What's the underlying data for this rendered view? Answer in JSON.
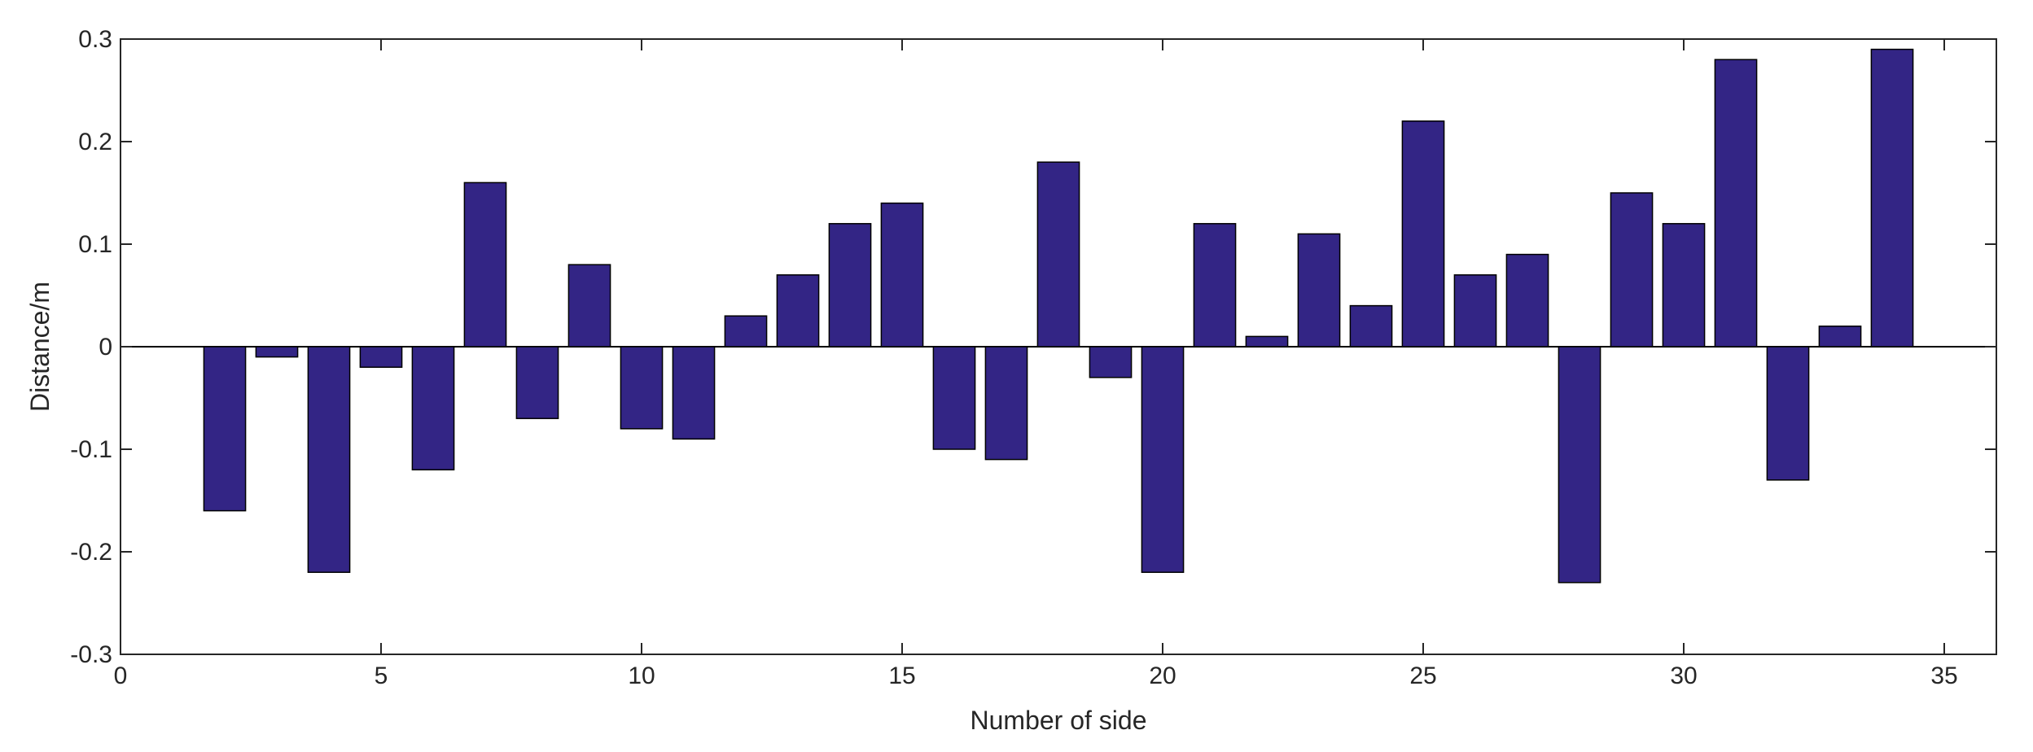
{
  "chart_data": {
    "type": "bar",
    "title": "",
    "xlabel": "Number of side",
    "ylabel": "Distance/m",
    "xlim": [
      0,
      36
    ],
    "ylim": [
      -0.3,
      0.3
    ],
    "xticks": [
      0,
      5,
      10,
      15,
      20,
      25,
      30,
      35
    ],
    "yticks": [
      0.3,
      0.2,
      0.1,
      0,
      -0.1,
      -0.2,
      -0.3
    ],
    "xtick_labels": [
      "0",
      "5",
      "10",
      "15",
      "20",
      "25",
      "30",
      "35"
    ],
    "ytick_labels": [
      "0.3",
      "0.2",
      "0.1",
      "0",
      "-0.1",
      "-0.2",
      "-0.3"
    ],
    "grid": false,
    "bar_color": "#332585",
    "x": [
      2,
      3,
      4,
      5,
      6,
      7,
      8,
      9,
      10,
      11,
      12,
      13,
      14,
      15,
      16,
      17,
      18,
      19,
      20,
      21,
      22,
      23,
      24,
      25,
      26,
      27,
      28,
      29,
      30,
      31,
      32,
      33,
      34
    ],
    "values": [
      -0.16,
      -0.01,
      -0.22,
      -0.02,
      -0.12,
      0.16,
      -0.07,
      0.08,
      -0.08,
      -0.09,
      0.03,
      0.07,
      0.12,
      0.14,
      -0.1,
      -0.11,
      0.18,
      -0.03,
      -0.22,
      0.12,
      0.01,
      0.11,
      0.04,
      0.22,
      0.07,
      0.09,
      -0.23,
      0.15,
      0.12,
      0.28,
      -0.13,
      0.02,
      0.29
    ]
  }
}
